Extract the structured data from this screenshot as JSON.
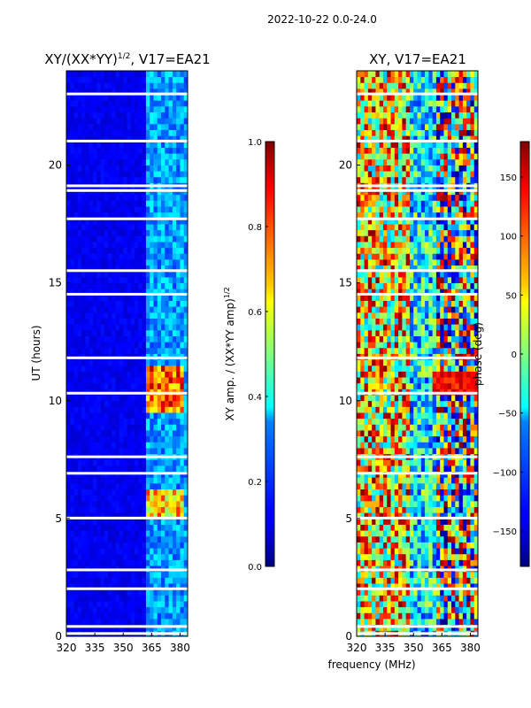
{
  "figure_title": "2022-10-22 0.0-24.0",
  "xlabel_shared": "frequency (MHz)",
  "chart_data": [
    {
      "type": "heatmap",
      "title": "XY/(XX*YY)",
      "title_sup": "1/2",
      "title_suffix": ", V17=EA21",
      "xlabel": "",
      "ylabel": "UT (hours)",
      "xlim": [
        320,
        384
      ],
      "ylim": [
        0,
        24
      ],
      "xticks": [
        320,
        335,
        350,
        365,
        380
      ],
      "xtick_labels": [
        "320",
        "335",
        "350",
        "365",
        "380"
      ],
      "yticks": [
        0,
        5,
        10,
        15,
        20
      ],
      "ytick_labels": [
        "0",
        "5",
        "10",
        "15",
        "20"
      ],
      "colormap": "jet",
      "colorbar": {
        "label": "XY amp. / (XX*YY amp)",
        "label_sup": "1/2",
        "range": [
          0.0,
          1.0
        ],
        "ticks": [
          0.0,
          0.2,
          0.4,
          0.6,
          0.8,
          1.0
        ],
        "tick_labels": [
          "0.0",
          "0.2",
          "0.4",
          "0.6",
          "0.8",
          "1.0"
        ]
      },
      "flagged_band_hours": [
        0.1,
        0.4,
        2.0,
        2.8,
        5.0,
        6.9,
        7.6,
        10.3,
        11.8,
        14.5,
        15.5,
        17.7,
        18.9,
        19.1,
        21.0,
        23.0
      ],
      "hotspots": [
        {
          "hours": [
            5.0,
            6.2
          ],
          "freq_mhz": [
            363,
            381
          ],
          "value": 0.85
        },
        {
          "hours": [
            9.5,
            11.6
          ],
          "freq_mhz": [
            363,
            381
          ],
          "value": 0.95
        }
      ]
    },
    {
      "type": "heatmap",
      "title": "XY, V17=EA21",
      "xlabel": "frequency (MHz)",
      "ylabel": "",
      "xlim": [
        320,
        384
      ],
      "ylim": [
        0,
        24
      ],
      "xticks": [
        320,
        335,
        350,
        365,
        380
      ],
      "xtick_labels": [
        "320",
        "335",
        "350",
        "365",
        "380"
      ],
      "yticks": [
        0,
        5,
        10,
        15,
        20
      ],
      "ytick_labels": [
        "0",
        "5",
        "10",
        "15",
        "20"
      ],
      "colormap": "jet",
      "colorbar": {
        "label": "phase (deg)",
        "range": [
          -180,
          180
        ],
        "ticks": [
          -150,
          -100,
          -50,
          0,
          50,
          100,
          150
        ],
        "tick_labels": [
          "−150",
          "−100",
          "−50",
          "0",
          "50",
          "100",
          "150"
        ]
      },
      "flagged_band_hours": [
        0.1,
        0.4,
        2.0,
        2.8,
        5.0,
        6.9,
        7.6,
        10.3,
        11.8,
        14.5,
        15.5,
        17.7,
        18.9,
        19.1,
        21.0,
        23.0
      ]
    }
  ]
}
